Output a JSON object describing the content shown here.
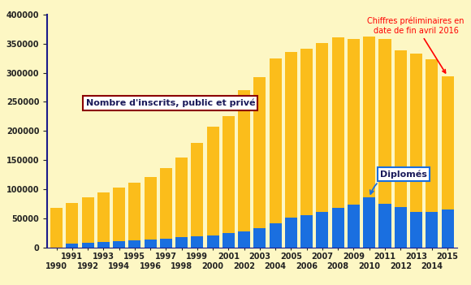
{
  "chart_data": {
    "type": "bar",
    "categories": [
      "1990",
      "1991",
      "1992",
      "1993",
      "1994",
      "1995",
      "1996",
      "1997",
      "1998",
      "1999",
      "2000",
      "2001",
      "2002",
      "2003",
      "2004",
      "2005",
      "2006",
      "2007",
      "2008",
      "2009",
      "2010",
      "2011",
      "2012",
      "2013",
      "2014",
      "2015"
    ],
    "series": [
      {
        "name": "Nombre d'inscrits, public et privé",
        "color": "#fbbd1b",
        "values": [
          68000,
          77000,
          87000,
          95000,
          103000,
          112000,
          122000,
          137000,
          155000,
          180000,
          207000,
          226000,
          270000,
          292000,
          325000,
          336000,
          341000,
          351000,
          360000,
          357000,
          362000,
          357000,
          338000,
          332000,
          323000,
          294000
        ]
      },
      {
        "name": "Diplomés",
        "color": "#1a6fe0",
        "values": [
          0,
          7000,
          9000,
          10000,
          11000,
          13000,
          14000,
          16000,
          18000,
          20000,
          22000,
          25000,
          29000,
          34000,
          42000,
          52000,
          56000,
          62000,
          69000,
          74000,
          86000,
          75000,
          70000,
          61000,
          62000,
          66000
        ]
      }
    ],
    "stacked": false,
    "annotations": [
      "Chiffres préliminaires en date de fin avril 2016"
    ],
    "ylim": [
      0,
      400000
    ],
    "yticks": [
      0,
      50000,
      100000,
      150000,
      200000,
      250000,
      300000,
      350000,
      400000
    ],
    "grid": false
  }
}
